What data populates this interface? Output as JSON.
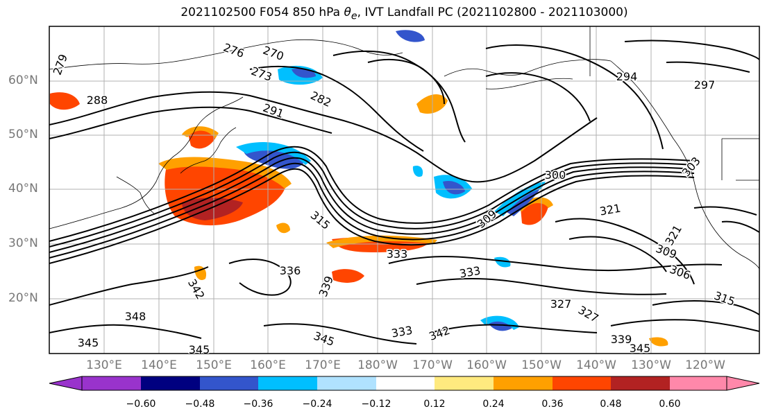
{
  "title": {
    "prefix": "2021102500 F054 850 hPa ",
    "theta": "θ",
    "theta_sub": "e",
    "suffix": ", IVT Landfall PC (2021102800 - 2021103000)"
  },
  "axes": {
    "lat_labels": [
      "60°N",
      "50°N",
      "40°N",
      "30°N",
      "20°N"
    ],
    "lon_labels": [
      "130°E",
      "140°E",
      "150°E",
      "160°E",
      "170°E",
      "180°W",
      "170°W",
      "160°W",
      "150°W",
      "140°W",
      "130°W",
      "120°W"
    ]
  },
  "colorbar": {
    "colors": [
      "#9933cc",
      "#000080",
      "#3355cc",
      "#00bfff",
      "#b0e2ff",
      "#ffffff",
      "#ffea7f",
      "#ffa000",
      "#ff4500",
      "#b22222",
      "#ff88aa"
    ],
    "tick_labels": [
      "−0.60",
      "−0.48",
      "−0.36",
      "−0.24",
      "−0.12",
      "0.12",
      "0.24",
      "0.36",
      "0.48",
      "0.60"
    ]
  },
  "contour_labels": [
    "276",
    "270",
    "279",
    "273",
    "288",
    "282",
    "291",
    "294",
    "297",
    "300",
    "309",
    "315",
    "321",
    "321",
    "309",
    "306",
    "333",
    "336",
    "333",
    "333",
    "342",
    "327",
    "327",
    "339",
    "345",
    "345",
    "345",
    "348",
    "315",
    "345",
    "342",
    "339",
    "303"
  ]
}
